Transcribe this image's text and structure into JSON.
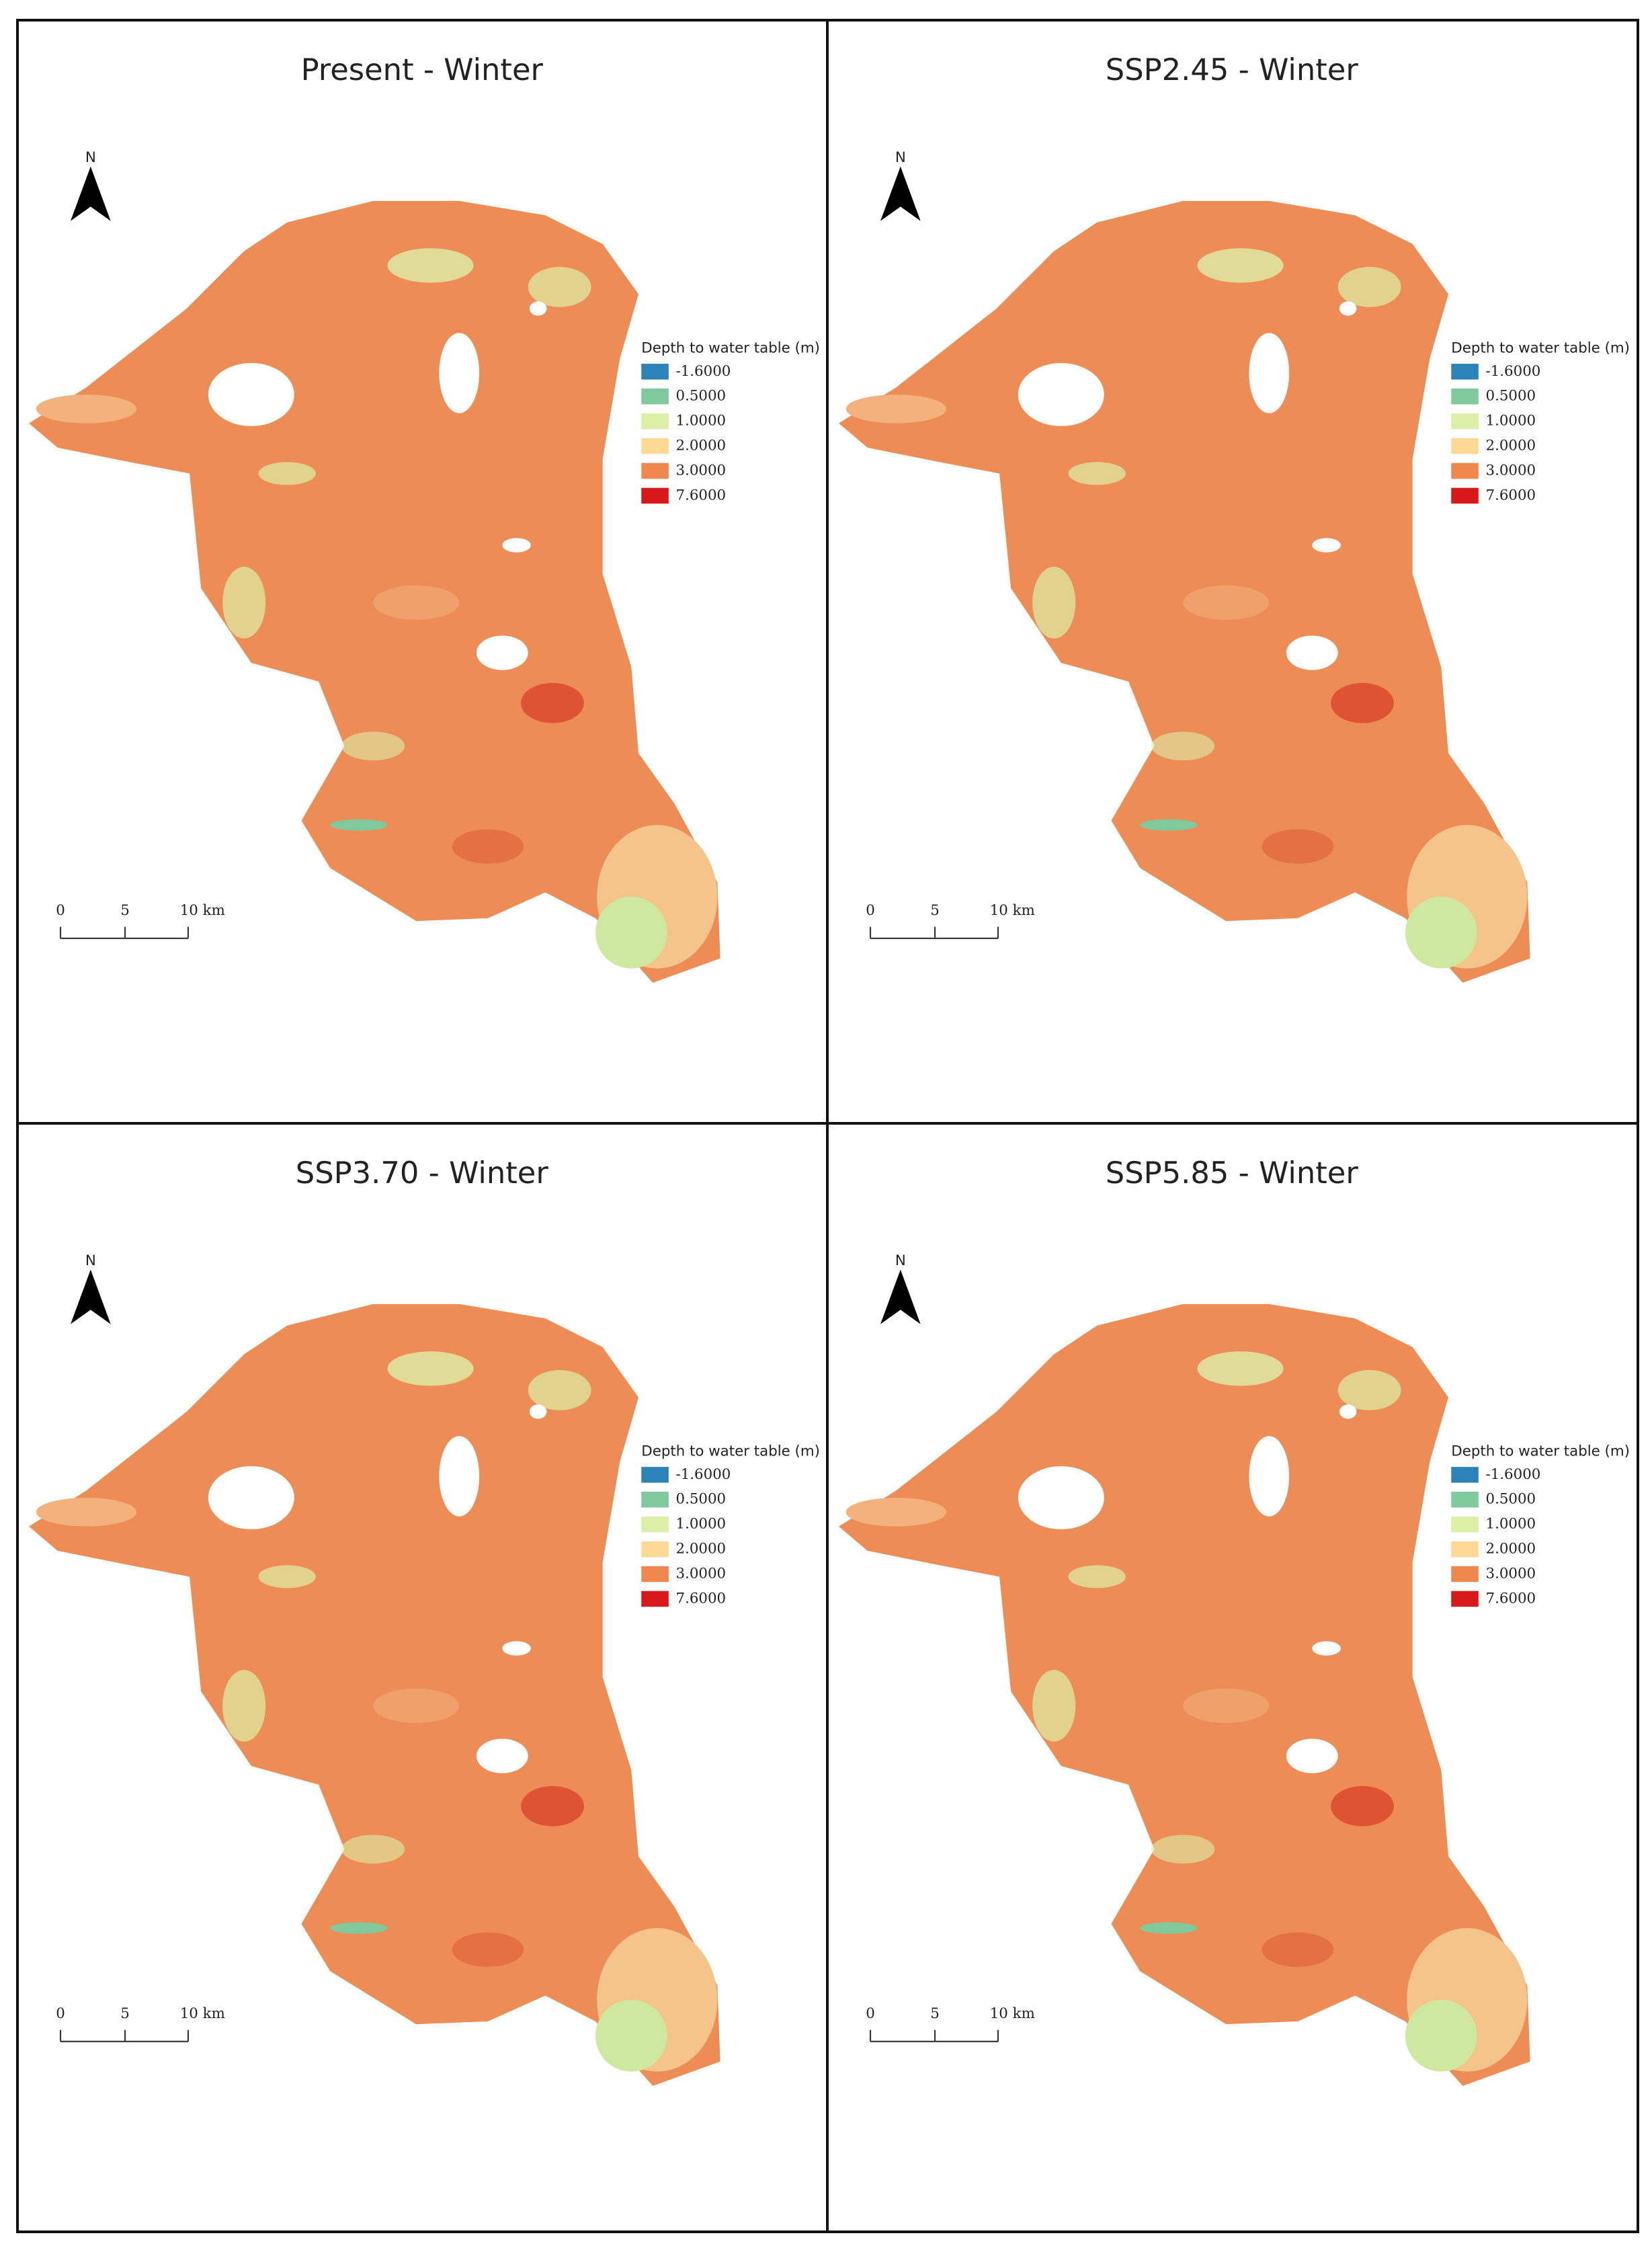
{
  "panels": [
    {
      "title": "Present - Winter",
      "north": "N",
      "legend_title": "Depth to water table (m)",
      "legend": [
        {
          "label": "-1.6000",
          "color": "#2b83ba"
        },
        {
          "label": "0.5000",
          "color": "#80c99c"
        },
        {
          "label": "1.0000",
          "color": "#dcefa6"
        },
        {
          "label": "2.0000",
          "color": "#fdd995"
        },
        {
          "label": "3.0000",
          "color": "#f0884e"
        },
        {
          "label": "7.6000",
          "color": "#d7191c"
        }
      ],
      "scale": [
        "0",
        "5",
        "10 km"
      ]
    },
    {
      "title": "SSP2.45 - Winter",
      "north": "N",
      "legend_title": "Depth to water table (m)",
      "legend": [
        {
          "label": "-1.6000",
          "color": "#2b83ba"
        },
        {
          "label": "0.5000",
          "color": "#80c99c"
        },
        {
          "label": "1.0000",
          "color": "#dcefa6"
        },
        {
          "label": "2.0000",
          "color": "#fdd995"
        },
        {
          "label": "3.0000",
          "color": "#f0884e"
        },
        {
          "label": "7.6000",
          "color": "#d7191c"
        }
      ],
      "scale": [
        "0",
        "5",
        "10 km"
      ]
    },
    {
      "title": "SSP3.70 - Winter",
      "north": "N",
      "legend_title": "Depth to water table (m)",
      "legend": [
        {
          "label": "-1.6000",
          "color": "#2b83ba"
        },
        {
          "label": "0.5000",
          "color": "#80c99c"
        },
        {
          "label": "1.0000",
          "color": "#dcefa6"
        },
        {
          "label": "2.0000",
          "color": "#fdd995"
        },
        {
          "label": "3.0000",
          "color": "#f0884e"
        },
        {
          "label": "7.6000",
          "color": "#d7191c"
        }
      ],
      "scale": [
        "0",
        "5",
        "10 km"
      ]
    },
    {
      "title": "SSP5.85 - Winter",
      "north": "N",
      "legend_title": "Depth to water table (m)",
      "legend": [
        {
          "label": "-1.6000",
          "color": "#2b83ba"
        },
        {
          "label": "0.5000",
          "color": "#80c99c"
        },
        {
          "label": "1.0000",
          "color": "#dcefa6"
        },
        {
          "label": "2.0000",
          "color": "#fdd995"
        },
        {
          "label": "3.0000",
          "color": "#f0884e"
        },
        {
          "label": "7.6000",
          "color": "#d7191c"
        }
      ],
      "scale": [
        "0",
        "5",
        "10 km"
      ]
    }
  ]
}
